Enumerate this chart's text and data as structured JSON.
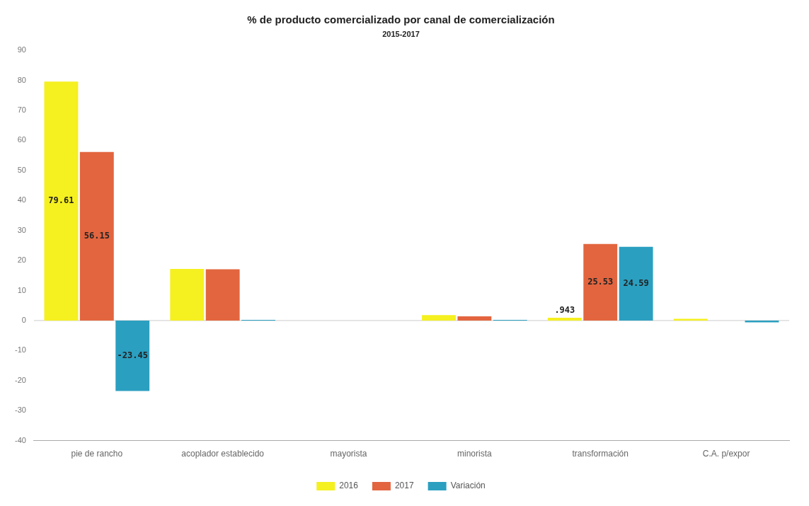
{
  "chart_data": {
    "type": "bar",
    "title": "% de producto comercializado por canal de comercialización",
    "subtitle": "2015-2017",
    "categories": [
      "pie de rancho",
      "acoplador establecido",
      "mayorista",
      "minorista",
      "transformación",
      "C.A. p/expor"
    ],
    "series": [
      {
        "name": "2016",
        "color": "#f5f020",
        "values": [
          79.61,
          17.2,
          0,
          1.8,
          0.943,
          0.6
        ],
        "value_labels": [
          "79.61",
          null,
          null,
          null,
          ".943",
          null
        ]
      },
      {
        "name": "2017",
        "color": "#e2653f",
        "values": [
          56.15,
          17.1,
          0,
          1.4,
          25.53,
          0
        ],
        "value_labels": [
          "56.15",
          null,
          null,
          null,
          "25.53",
          null
        ]
      },
      {
        "name": "Variación",
        "color": "#2b9fc0",
        "values": [
          -23.45,
          0.2,
          0,
          0.2,
          24.59,
          -0.6
        ],
        "value_labels": [
          "-23.45",
          null,
          null,
          null,
          "24.59",
          null
        ]
      }
    ],
    "ylim": [
      -40,
      90
    ],
    "yticks": [
      -40,
      -30,
      -20,
      -10,
      0,
      10,
      20,
      30,
      40,
      50,
      60,
      70,
      80,
      90
    ],
    "grid": false,
    "legend": "bottom",
    "ref_lines": [
      {
        "axis": "y",
        "value": 0,
        "color": "#cccccc"
      }
    ]
  }
}
